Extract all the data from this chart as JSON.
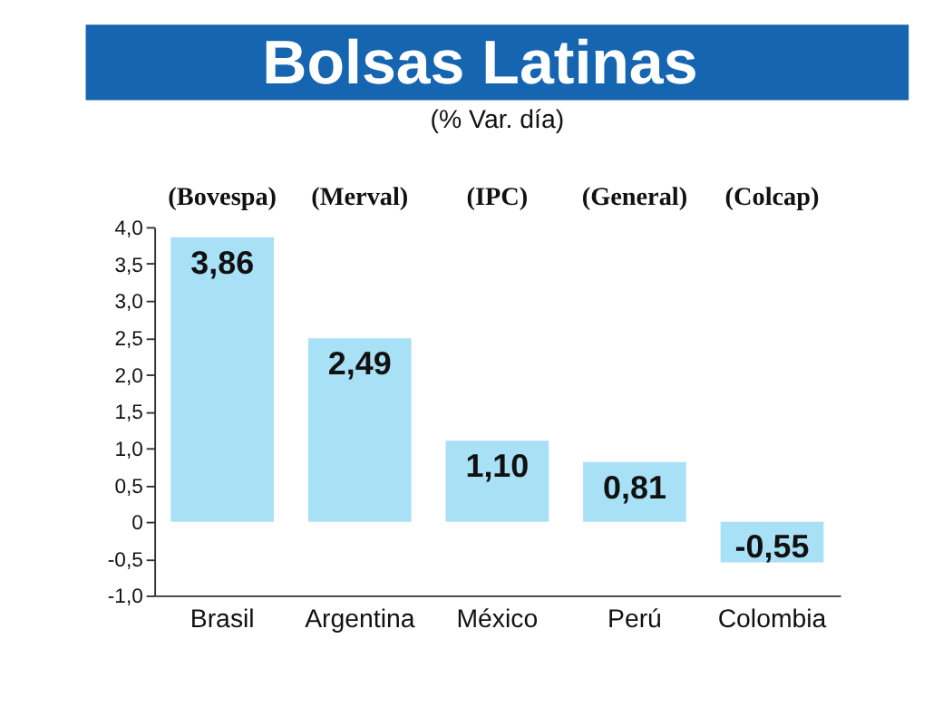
{
  "chart_data": {
    "type": "bar",
    "title": "Bolsas Latinas",
    "subtitle": "(% Var. día)",
    "categories": [
      "Brasil",
      "Argentina",
      "México",
      "Perú",
      "Colombia"
    ],
    "values": [
      3.86,
      2.49,
      1.1,
      0.81,
      -0.55
    ],
    "value_labels": [
      "3,86",
      "2,49",
      "1,10",
      "0,81",
      "-0,55"
    ],
    "color": "#a8e0f6",
    "annotations": [
      "(Bovespa)",
      "(Merval)",
      "(IPC)",
      "(General)",
      "(Colcap)"
    ],
    "ylim": [
      -1.0,
      4.0
    ],
    "yticks": [
      {
        "value": -1.0,
        "label": "-1,0"
      },
      {
        "value": -0.5,
        "label": "-0,5"
      },
      0,
      {
        "value": 0.5,
        "label": "0,5"
      },
      {
        "value": 1.0,
        "label": "1,0"
      },
      {
        "value": 1.5,
        "label": "1,5"
      },
      {
        "value": 2.0,
        "label": "2,0"
      },
      {
        "value": 2.5,
        "label": "2,5"
      },
      {
        "value": 3.0,
        "label": "3,0"
      },
      {
        "value": 3.5,
        "label": "3,5"
      },
      {
        "value": 4.0,
        "label": "4,0"
      }
    ],
    "grid": false
  }
}
